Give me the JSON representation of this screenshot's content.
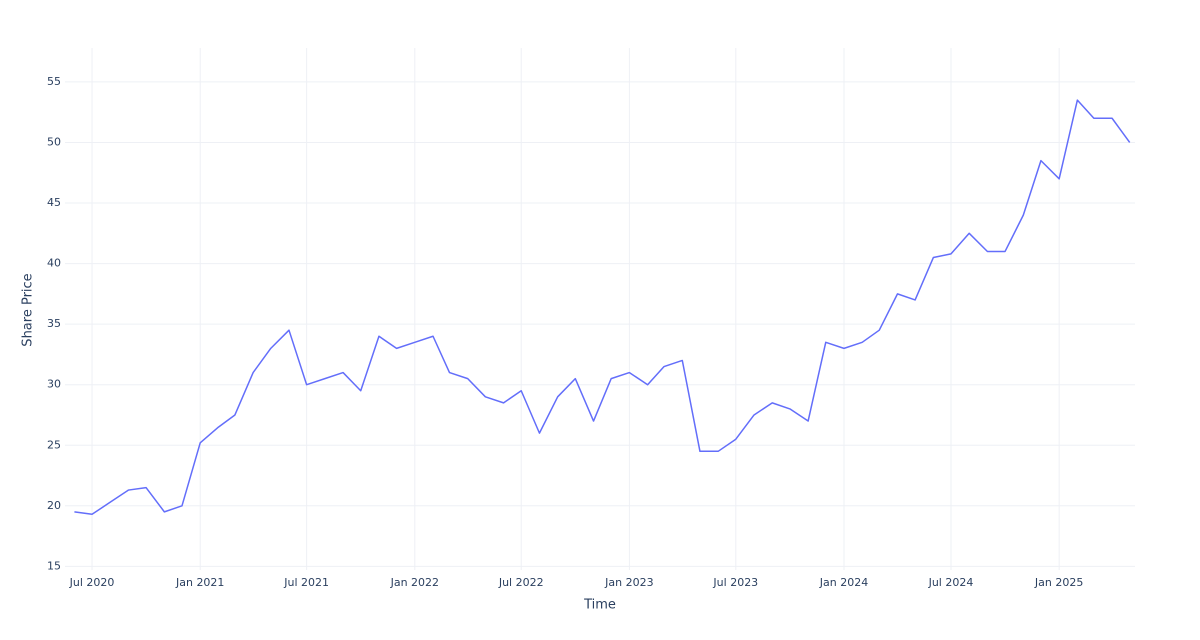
{
  "chart_data": {
    "type": "line",
    "x_label": "Time",
    "y_label": "Share Price",
    "x": [
      "2020-06",
      "2020-07",
      "2020-08",
      "2020-09",
      "2020-10",
      "2020-11",
      "2020-12",
      "2021-01",
      "2021-02",
      "2021-03",
      "2021-04",
      "2021-05",
      "2021-06",
      "2021-07",
      "2021-08",
      "2021-09",
      "2021-10",
      "2021-11",
      "2021-12",
      "2022-01",
      "2022-02",
      "2022-03",
      "2022-04",
      "2022-05",
      "2022-06",
      "2022-07",
      "2022-08",
      "2022-09",
      "2022-10",
      "2022-11",
      "2022-12",
      "2023-01",
      "2023-02",
      "2023-03",
      "2023-04",
      "2023-05",
      "2023-06",
      "2023-07",
      "2023-08",
      "2023-09",
      "2023-10",
      "2023-11",
      "2023-12",
      "2024-01",
      "2024-02",
      "2024-03",
      "2024-04",
      "2024-05",
      "2024-06",
      "2024-07",
      "2024-08",
      "2024-09",
      "2024-10",
      "2024-11",
      "2024-12",
      "2025-01",
      "2025-02",
      "2025-03",
      "2025-04",
      "2025-05"
    ],
    "series": [
      {
        "name": "Share Price",
        "color": "#636efa",
        "values": [
          19.5,
          19.3,
          20.3,
          21.3,
          21.5,
          19.5,
          20.0,
          25.2,
          26.5,
          27.5,
          31,
          33,
          34.5,
          30,
          30.5,
          31,
          29.5,
          34,
          33,
          33.5,
          34,
          31,
          30.5,
          29,
          28.5,
          29.5,
          26,
          29,
          30.5,
          27,
          30.5,
          31,
          30,
          31.5,
          32,
          24.5,
          24.5,
          25.5,
          27.5,
          28.5,
          28,
          27,
          33.5,
          33,
          33.5,
          34.5,
          37.5,
          37,
          40.5,
          40.8,
          42.5,
          41,
          41,
          44,
          48.5,
          47,
          53.5,
          52,
          52,
          50
        ]
      }
    ],
    "xlim": [
      "2020-05-16",
      "2025-05-10"
    ],
    "xticks": [
      {
        "value": "2020-07-01",
        "label": "Jul 2020"
      },
      {
        "value": "2021-01-01",
        "label": "Jan 2021"
      },
      {
        "value": "2021-07-01",
        "label": "Jul 2021"
      },
      {
        "value": "2022-01-01",
        "label": "Jan 2022"
      },
      {
        "value": "2022-07-01",
        "label": "Jul 2022"
      },
      {
        "value": "2023-01-01",
        "label": "Jan 2023"
      },
      {
        "value": "2023-07-01",
        "label": "Jul 2023"
      },
      {
        "value": "2024-01-01",
        "label": "Jan 2024"
      },
      {
        "value": "2024-07-01",
        "label": "Jul 2024"
      },
      {
        "value": "2025-01-01",
        "label": "Jan 2025"
      }
    ],
    "ylim": [
      14.7,
      57.8
    ],
    "yticks": [
      15,
      20,
      25,
      30,
      35,
      40,
      45,
      50,
      55
    ],
    "grid": true
  }
}
